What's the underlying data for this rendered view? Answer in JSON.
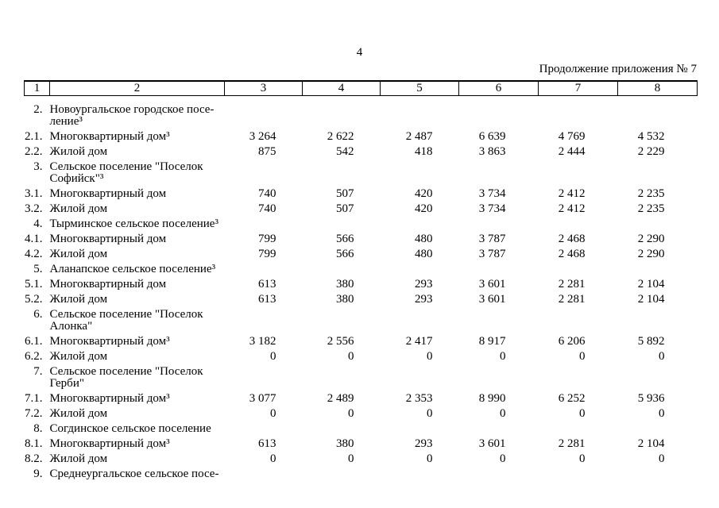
{
  "page": {
    "number": "4",
    "continuation": "Продолжение приложения № 7"
  },
  "table": {
    "header": [
      "1",
      "2",
      "3",
      "4",
      "5",
      "6",
      "7",
      "8"
    ],
    "rows": [
      {
        "num": "2.",
        "name": "Новоургальское городское посе-\nление³",
        "values": [
          "",
          "",
          "",
          "",
          "",
          ""
        ]
      },
      {
        "num": "2.1.",
        "name": "Многоквартирный дом³",
        "values": [
          "3 264",
          "2 622",
          "2 487",
          "6 639",
          "4 769",
          "4 532"
        ]
      },
      {
        "num": "2.2.",
        "name": "Жилой дом",
        "values": [
          "875",
          "542",
          "418",
          "3 863",
          "2 444",
          "2 229"
        ]
      },
      {
        "num": "3.",
        "name": "Сельское поселение \"Поселок\nСофийск\"³",
        "values": [
          "",
          "",
          "",
          "",
          "",
          ""
        ]
      },
      {
        "num": "3.1.",
        "name": "Многоквартирный дом",
        "values": [
          "740",
          "507",
          "420",
          "3 734",
          "2 412",
          "2 235"
        ]
      },
      {
        "num": "3.2.",
        "name": "Жилой дом",
        "values": [
          "740",
          "507",
          "420",
          "3 734",
          "2 412",
          "2 235"
        ]
      },
      {
        "num": "4.",
        "name": "Тырминское сельское поселение³",
        "values": [
          "",
          "",
          "",
          "",
          "",
          ""
        ]
      },
      {
        "num": "4.1.",
        "name": "Многоквартирный дом",
        "values": [
          "799",
          "566",
          "480",
          "3 787",
          "2 468",
          "2 290"
        ]
      },
      {
        "num": "4.2.",
        "name": "Жилой дом",
        "values": [
          "799",
          "566",
          "480",
          "3 787",
          "2 468",
          "2 290"
        ]
      },
      {
        "num": "5.",
        "name": "Аланапское сельское поселение³",
        "values": [
          "",
          "",
          "",
          "",
          "",
          ""
        ]
      },
      {
        "num": "5.1.",
        "name": "Многоквартирный дом",
        "values": [
          "613",
          "380",
          "293",
          "3 601",
          "2 281",
          "2 104"
        ]
      },
      {
        "num": "5.2.",
        "name": "Жилой дом",
        "values": [
          "613",
          "380",
          "293",
          "3 601",
          "2 281",
          "2 104"
        ]
      },
      {
        "num": "6.",
        "name": "Сельское поселение \"Поселок\nАлонка\"",
        "values": [
          "",
          "",
          "",
          "",
          "",
          ""
        ]
      },
      {
        "num": "6.1.",
        "name": "Многоквартирный дом³",
        "values": [
          "3 182",
          "2 556",
          "2 417",
          "8 917",
          "6 206",
          "5 892"
        ]
      },
      {
        "num": "6.2.",
        "name": "Жилой дом",
        "values": [
          "0",
          "0",
          "0",
          "0",
          "0",
          "0"
        ]
      },
      {
        "num": "7.",
        "name": "Сельское поселение \"Поселок\nГерби\"",
        "values": [
          "",
          "",
          "",
          "",
          "",
          ""
        ]
      },
      {
        "num": "7.1.",
        "name": "Многоквартирный дом³",
        "values": [
          "3 077",
          "2 489",
          "2 353",
          "8 990",
          "6 252",
          "5 936"
        ]
      },
      {
        "num": "7.2.",
        "name": "Жилой дом",
        "values": [
          "0",
          "0",
          "0",
          "0",
          "0",
          "0"
        ]
      },
      {
        "num": "8.",
        "name": "Согдинское сельское поселение",
        "values": [
          "",
          "",
          "",
          "",
          "",
          ""
        ]
      },
      {
        "num": "8.1.",
        "name": "Многоквартирный дом³",
        "values": [
          "613",
          "380",
          "293",
          "3 601",
          "2 281",
          "2 104"
        ]
      },
      {
        "num": "8.2.",
        "name": "Жилой дом",
        "values": [
          "0",
          "0",
          "0",
          "0",
          "0",
          "0"
        ]
      },
      {
        "num": "9.",
        "name": "Среднеургальское сельское посе-",
        "values": [
          "",
          "",
          "",
          "",
          "",
          ""
        ]
      }
    ]
  }
}
